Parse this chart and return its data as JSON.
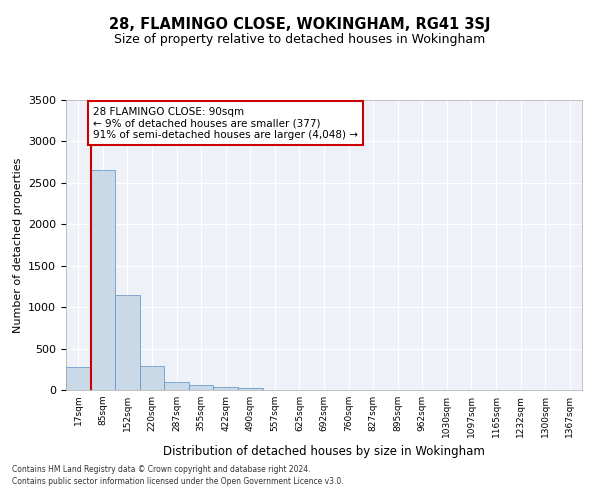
{
  "title": "28, FLAMINGO CLOSE, WOKINGHAM, RG41 3SJ",
  "subtitle": "Size of property relative to detached houses in Wokingham",
  "xlabel": "Distribution of detached houses by size in Wokingham",
  "ylabel": "Number of detached properties",
  "bar_color": "#c9d9e8",
  "bar_edge_color": "#5a8fc2",
  "bar_edge_width": 0.5,
  "bin_labels": [
    "17sqm",
    "85sqm",
    "152sqm",
    "220sqm",
    "287sqm",
    "355sqm",
    "422sqm",
    "490sqm",
    "557sqm",
    "625sqm",
    "692sqm",
    "760sqm",
    "827sqm",
    "895sqm",
    "962sqm",
    "1030sqm",
    "1097sqm",
    "1165sqm",
    "1232sqm",
    "1300sqm",
    "1367sqm"
  ],
  "bar_values": [
    280,
    2650,
    1150,
    290,
    100,
    60,
    40,
    30,
    5,
    3,
    2,
    1,
    1,
    0,
    0,
    0,
    0,
    0,
    0,
    0,
    0
  ],
  "property_line_x": 1,
  "property_line_color": "#cc0000",
  "annotation_text": "28 FLAMINGO CLOSE: 90sqm\n← 9% of detached houses are smaller (377)\n91% of semi-detached houses are larger (4,048) →",
  "annotation_box_color": "#cc0000",
  "ylim": [
    0,
    3500
  ],
  "yticks": [
    0,
    500,
    1000,
    1500,
    2000,
    2500,
    3000,
    3500
  ],
  "background_color": "#eef2f8",
  "grid_color": "#ffffff",
  "footer_line1": "Contains HM Land Registry data © Crown copyright and database right 2024.",
  "footer_line2": "Contains public sector information licensed under the Open Government Licence v3.0."
}
